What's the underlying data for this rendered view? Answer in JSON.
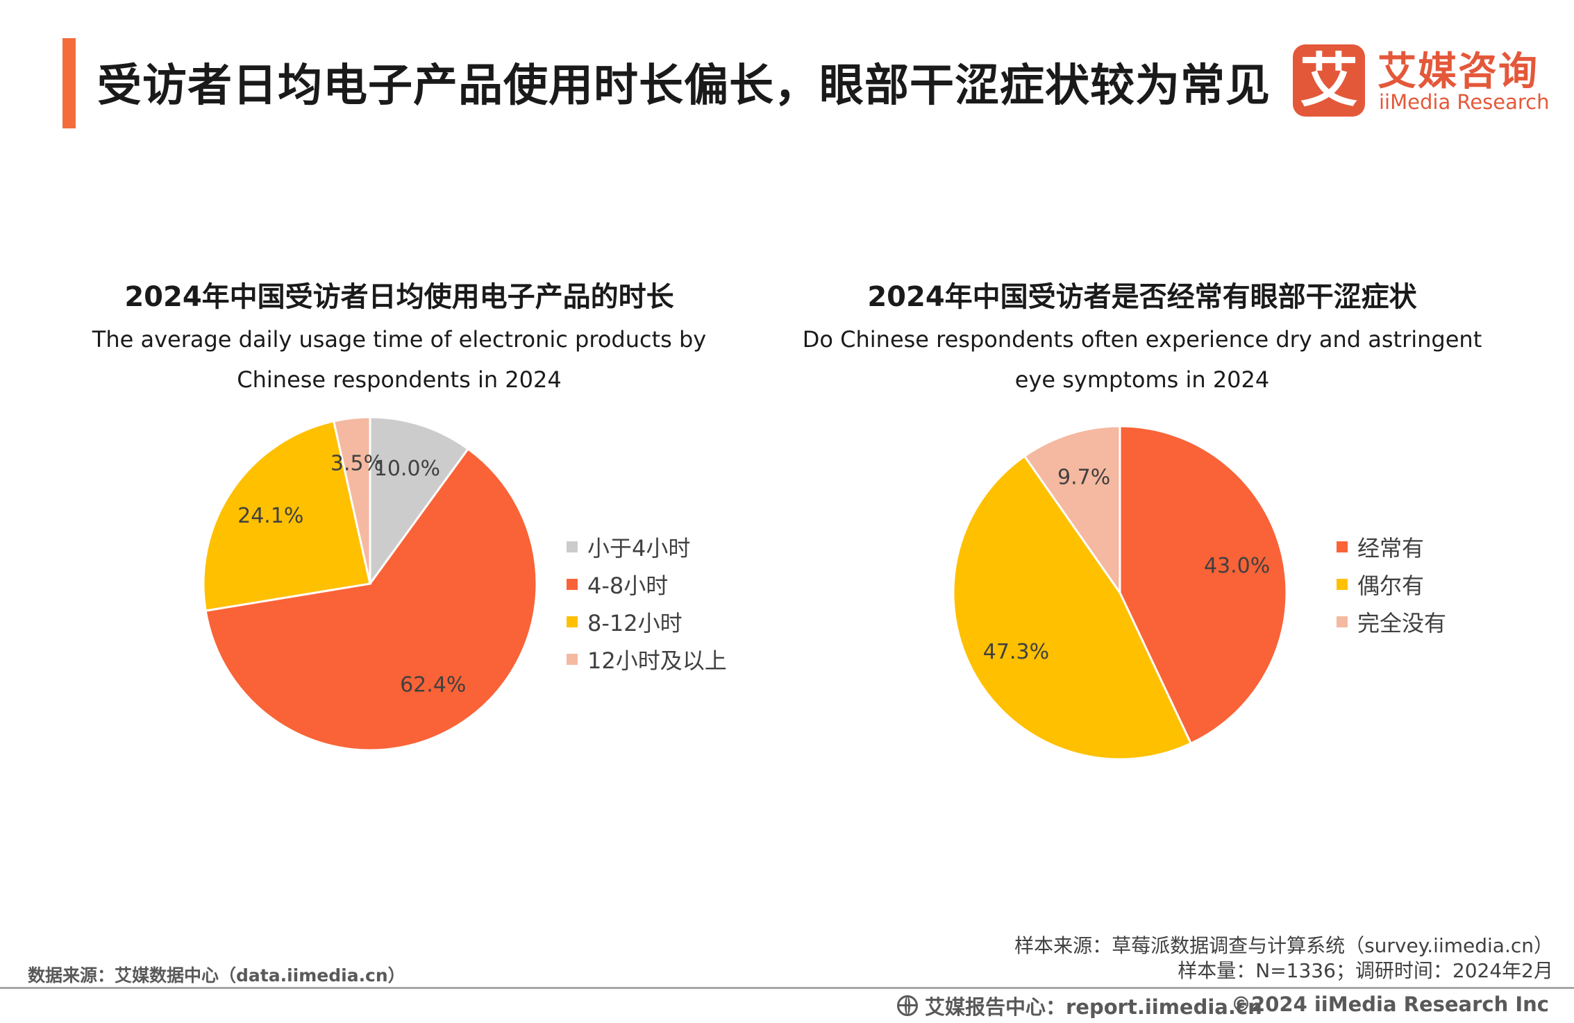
{
  "header": {
    "title": "受访者日均电子产品使用时长偏长，眼部干涩症状较为常见",
    "logo": {
      "mark": "艾",
      "name_cn": "艾媒咨询",
      "name_en": "iiMedia Research"
    },
    "accent_color": "#f46c3c"
  },
  "chart_data": [
    {
      "type": "pie",
      "title": "2024年中国受访者日均使用电子产品的时长",
      "subtitle": "The average daily usage time of electronic products by Chinese respondents in 2024",
      "categories": [
        "小于4小时",
        "4-8小时",
        "8-12小时",
        "12小时及以上"
      ],
      "values": [
        10.0,
        62.4,
        24.1,
        3.5
      ],
      "labels": [
        "10.0%",
        "62.4%",
        "24.1%",
        "3.5%"
      ],
      "colors": [
        "#cccccc",
        "#f96337",
        "#ffc000",
        "#f4b9a0"
      ],
      "legend_position": "right"
    },
    {
      "type": "pie",
      "title": "2024年中国受访者是否经常有眼部干涩症状",
      "subtitle": "Do Chinese respondents often experience dry and astringent eye symptoms in 2024",
      "categories": [
        "经常有",
        "偶尔有",
        "完全没有"
      ],
      "values": [
        43.0,
        47.3,
        9.7
      ],
      "labels": [
        "43.0%",
        "47.3%",
        "9.7%"
      ],
      "colors": [
        "#f96337",
        "#ffc000",
        "#f4b9a0"
      ],
      "legend_position": "right"
    }
  ],
  "footer": {
    "sample_source": "样本来源：草莓派数据调查与计算系统（survey.iimedia.cn）",
    "sample_size": "样本量：N=1336；调研时间：2024年2月",
    "data_source": "数据来源：艾媒数据中心（data.iimedia.cn）",
    "report_center": "艾媒报告中心：report.iimedia.cn",
    "copyright": "©2024  iiMedia Research  Inc"
  }
}
